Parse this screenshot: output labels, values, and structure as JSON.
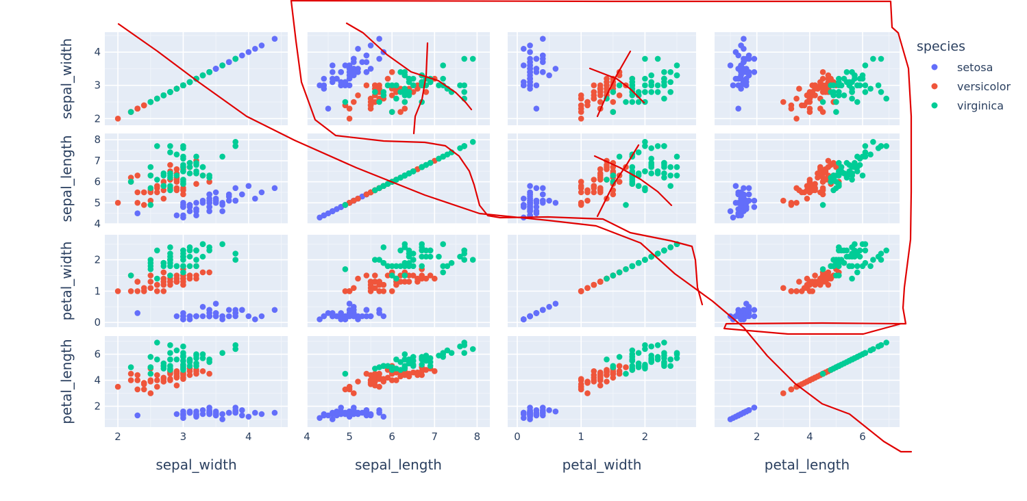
{
  "chart_data": {
    "type": "scatter",
    "kind": "scatter-matrix",
    "dimensions": [
      "sepal_width",
      "sepal_length",
      "petal_width",
      "petal_length"
    ],
    "axes": {
      "sepal_width": {
        "range": [
          1.8,
          4.6
        ],
        "ticks": [
          2,
          3,
          4
        ]
      },
      "sepal_length": {
        "range": [
          4.0,
          8.3
        ],
        "ticks": [
          4,
          5,
          6,
          7,
          8
        ]
      },
      "petal_width": {
        "range": [
          -0.15,
          2.8
        ],
        "ticks": [
          0,
          1,
          2
        ]
      },
      "petal_length": {
        "range": [
          0.4,
          7.4
        ],
        "ticks": [
          2,
          4,
          6
        ]
      }
    },
    "legend": {
      "title": "species",
      "position": "right"
    },
    "series": [
      {
        "name": "setosa",
        "color": "#636efa",
        "sepal_length": [
          5.1,
          4.9,
          4.7,
          4.6,
          5.0,
          5.4,
          4.6,
          5.0,
          4.4,
          4.9,
          5.4,
          4.8,
          4.8,
          4.3,
          5.8,
          5.7,
          5.4,
          5.1,
          5.7,
          5.1,
          5.4,
          5.1,
          4.6,
          5.1,
          4.8,
          5.0,
          5.0,
          5.2,
          5.2,
          4.7,
          4.8,
          5.4,
          5.2,
          5.5,
          4.9,
          5.0,
          5.5,
          4.9,
          4.4,
          5.1,
          5.0,
          4.5,
          4.4,
          5.0,
          5.1,
          4.8,
          5.1,
          4.6,
          5.3,
          5.0
        ],
        "sepal_width": [
          3.5,
          3.0,
          3.2,
          3.1,
          3.6,
          3.9,
          3.4,
          3.4,
          2.9,
          3.1,
          3.7,
          3.4,
          3.0,
          3.0,
          4.0,
          4.4,
          3.9,
          3.5,
          3.8,
          3.8,
          3.4,
          3.7,
          3.6,
          3.3,
          3.4,
          3.0,
          3.4,
          3.5,
          3.4,
          3.2,
          3.1,
          3.4,
          4.1,
          4.2,
          3.1,
          3.2,
          3.5,
          3.6,
          3.0,
          3.4,
          3.5,
          2.3,
          3.2,
          3.5,
          3.8,
          3.0,
          3.8,
          3.2,
          3.7,
          3.3
        ],
        "petal_length": [
          1.4,
          1.4,
          1.3,
          1.5,
          1.4,
          1.7,
          1.4,
          1.5,
          1.4,
          1.5,
          1.5,
          1.6,
          1.4,
          1.1,
          1.2,
          1.5,
          1.3,
          1.4,
          1.7,
          1.5,
          1.7,
          1.5,
          1.0,
          1.7,
          1.9,
          1.6,
          1.6,
          1.5,
          1.4,
          1.6,
          1.6,
          1.5,
          1.5,
          1.4,
          1.5,
          1.2,
          1.3,
          1.4,
          1.3,
          1.5,
          1.3,
          1.3,
          1.3,
          1.6,
          1.9,
          1.4,
          1.6,
          1.4,
          1.5,
          1.4
        ],
        "petal_width": [
          0.2,
          0.2,
          0.2,
          0.2,
          0.2,
          0.4,
          0.3,
          0.2,
          0.2,
          0.1,
          0.2,
          0.2,
          0.1,
          0.1,
          0.2,
          0.4,
          0.4,
          0.3,
          0.3,
          0.3,
          0.2,
          0.4,
          0.2,
          0.5,
          0.2,
          0.2,
          0.4,
          0.2,
          0.2,
          0.2,
          0.2,
          0.4,
          0.1,
          0.2,
          0.2,
          0.2,
          0.2,
          0.1,
          0.2,
          0.2,
          0.3,
          0.3,
          0.2,
          0.6,
          0.4,
          0.3,
          0.2,
          0.2,
          0.2,
          0.2
        ]
      },
      {
        "name": "versicolor",
        "color": "#ef553b",
        "sepal_length": [
          7.0,
          6.4,
          6.9,
          5.5,
          6.5,
          5.7,
          6.3,
          4.9,
          6.6,
          5.2,
          5.0,
          5.9,
          6.0,
          6.1,
          5.6,
          6.7,
          5.6,
          5.8,
          6.2,
          5.6,
          5.9,
          6.1,
          6.3,
          6.1,
          6.4,
          6.6,
          6.8,
          6.7,
          6.0,
          5.7,
          5.5,
          5.5,
          5.8,
          6.0,
          5.4,
          6.0,
          6.7,
          6.3,
          5.6,
          5.5,
          5.5,
          6.1,
          5.8,
          5.0,
          5.6,
          5.7,
          5.7,
          6.2,
          5.1,
          5.7
        ],
        "sepal_width": [
          3.2,
          3.2,
          3.1,
          2.3,
          2.8,
          2.8,
          3.3,
          2.4,
          2.9,
          2.7,
          2.0,
          3.0,
          2.2,
          2.9,
          2.9,
          3.1,
          3.0,
          2.7,
          2.2,
          2.5,
          3.2,
          2.8,
          2.5,
          2.8,
          2.9,
          3.0,
          2.8,
          3.0,
          2.9,
          2.6,
          2.4,
          2.4,
          2.7,
          2.7,
          3.0,
          3.4,
          3.1,
          2.3,
          3.0,
          2.5,
          2.6,
          3.0,
          2.6,
          2.3,
          2.7,
          3.0,
          2.9,
          2.9,
          2.5,
          2.8
        ],
        "petal_length": [
          4.7,
          4.5,
          4.9,
          4.0,
          4.6,
          4.5,
          4.7,
          3.3,
          4.6,
          3.9,
          3.5,
          4.2,
          4.0,
          4.7,
          3.6,
          4.4,
          4.5,
          4.1,
          4.5,
          3.9,
          4.8,
          4.0,
          4.9,
          4.7,
          4.3,
          4.4,
          4.8,
          5.0,
          4.5,
          3.5,
          3.8,
          3.7,
          3.9,
          5.1,
          4.5,
          4.5,
          4.7,
          4.4,
          4.1,
          4.0,
          4.4,
          4.6,
          4.0,
          3.3,
          4.2,
          4.2,
          4.2,
          4.3,
          3.0,
          4.1
        ],
        "petal_width": [
          1.4,
          1.5,
          1.5,
          1.3,
          1.5,
          1.3,
          1.6,
          1.0,
          1.3,
          1.4,
          1.0,
          1.5,
          1.0,
          1.4,
          1.3,
          1.4,
          1.5,
          1.0,
          1.5,
          1.1,
          1.8,
          1.3,
          1.5,
          1.2,
          1.3,
          1.4,
          1.4,
          1.7,
          1.5,
          1.0,
          1.1,
          1.0,
          1.2,
          1.6,
          1.5,
          1.6,
          1.5,
          1.3,
          1.3,
          1.3,
          1.2,
          1.4,
          1.2,
          1.0,
          1.3,
          1.2,
          1.3,
          1.3,
          1.1,
          1.3
        ]
      },
      {
        "name": "virginica",
        "color": "#00cc96",
        "sepal_length": [
          6.3,
          5.8,
          7.1,
          6.3,
          6.5,
          7.6,
          4.9,
          7.3,
          6.7,
          7.2,
          6.5,
          6.4,
          6.8,
          5.7,
          5.8,
          6.4,
          6.5,
          7.7,
          7.7,
          6.0,
          6.9,
          5.6,
          7.7,
          6.3,
          6.7,
          7.2,
          6.2,
          6.1,
          6.4,
          7.2,
          7.4,
          7.9,
          6.4,
          6.3,
          6.1,
          7.7,
          6.3,
          6.4,
          6.0,
          6.9,
          6.7,
          6.9,
          5.8,
          6.8,
          6.7,
          6.7,
          6.3,
          6.5,
          6.2,
          5.9
        ],
        "sepal_width": [
          3.3,
          2.7,
          3.0,
          2.9,
          3.0,
          3.0,
          2.5,
          2.9,
          2.5,
          3.6,
          3.2,
          2.7,
          3.0,
          2.5,
          2.8,
          3.2,
          3.0,
          3.8,
          2.6,
          2.2,
          3.2,
          2.8,
          2.8,
          2.7,
          3.3,
          3.2,
          2.8,
          3.0,
          2.8,
          3.0,
          2.8,
          3.8,
          2.8,
          2.8,
          2.6,
          3.0,
          3.4,
          3.1,
          3.0,
          3.1,
          3.1,
          3.1,
          2.7,
          3.2,
          3.3,
          3.0,
          2.5,
          3.0,
          3.4,
          3.0
        ],
        "petal_length": [
          6.0,
          5.1,
          5.9,
          5.6,
          5.8,
          6.6,
          4.5,
          6.3,
          5.8,
          6.1,
          5.1,
          5.3,
          5.5,
          5.0,
          5.1,
          5.3,
          5.5,
          6.7,
          6.9,
          5.0,
          5.7,
          4.9,
          6.7,
          4.9,
          5.7,
          6.0,
          4.8,
          4.9,
          5.6,
          5.8,
          6.1,
          6.4,
          5.6,
          5.1,
          5.6,
          6.1,
          5.6,
          5.5,
          4.8,
          5.4,
          5.6,
          5.1,
          5.1,
          5.9,
          5.7,
          5.2,
          5.0,
          5.2,
          5.4,
          5.1
        ],
        "petal_width": [
          2.5,
          1.9,
          2.1,
          1.8,
          2.2,
          2.1,
          1.7,
          1.8,
          1.8,
          2.5,
          2.0,
          1.9,
          2.1,
          2.0,
          2.4,
          2.3,
          1.8,
          2.2,
          2.3,
          1.5,
          2.3,
          2.0,
          2.0,
          1.8,
          2.1,
          1.8,
          1.8,
          1.8,
          2.1,
          1.6,
          1.9,
          2.0,
          2.2,
          1.5,
          1.4,
          2.3,
          2.4,
          1.8,
          1.8,
          2.1,
          2.4,
          2.3,
          1.9,
          2.3,
          2.5,
          2.3,
          1.9,
          2.0,
          2.3,
          1.8
        ]
      }
    ]
  }
}
